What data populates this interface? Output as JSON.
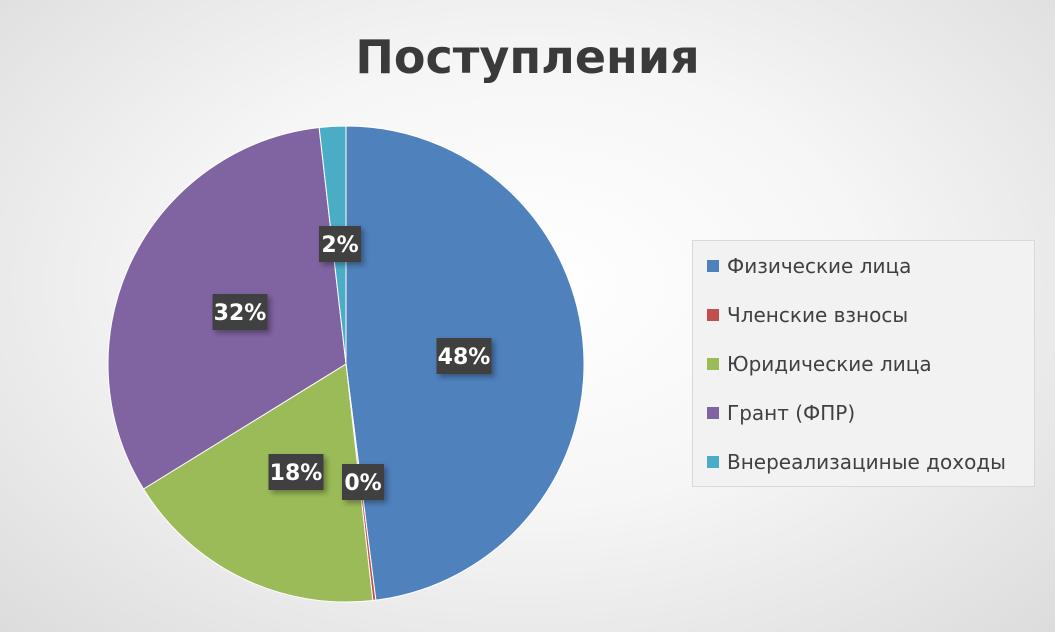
{
  "chart_data": {
    "type": "pie",
    "title": "Поступления",
    "categories": [
      "Физические лица",
      "Членские взносы",
      "Юридические лица",
      "Грант (ФПР)",
      "Внереализациные доходы"
    ],
    "values": [
      48,
      0.2,
      18,
      32,
      1.8
    ],
    "labels": [
      "48%",
      "0%",
      "18%",
      "32%",
      "2%"
    ],
    "colors": [
      "#4f81bd",
      "#c0504d",
      "#9bbb59",
      "#8064a2",
      "#4bacc6"
    ],
    "start_angle_deg": 0,
    "direction": "clockwise",
    "legend_position": "right"
  }
}
